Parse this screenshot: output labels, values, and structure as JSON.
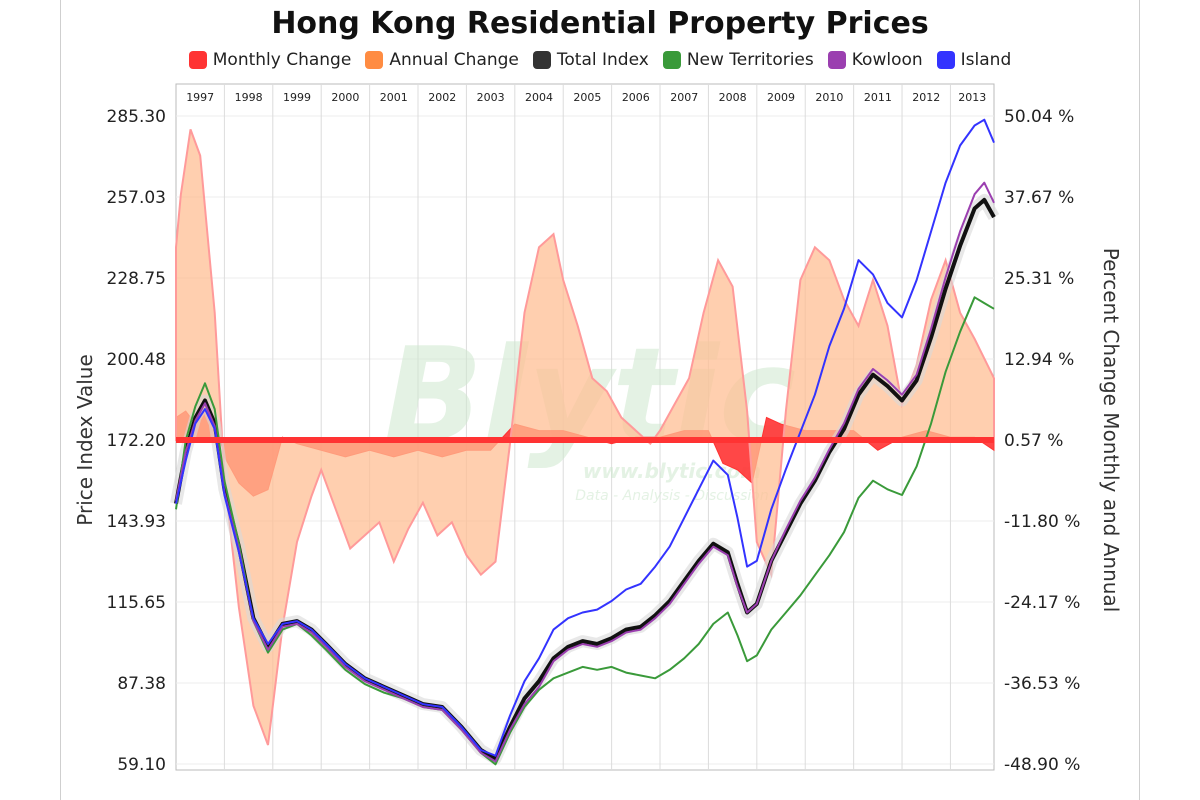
{
  "watermark": {
    "brand": "Blytic",
    "url": "www.blytic.com",
    "tagline": "Data - Analysis - Discussion"
  },
  "chart_data": {
    "type": "line",
    "title": "Hong Kong Residential Property Prices",
    "ylabel": "Price Index Value",
    "y2label": "Percent Change Monthly and Annual",
    "legend_position": "top",
    "grid": true,
    "ylim": [
      59.1,
      285.3
    ],
    "y2lim": [
      -48.9,
      50.04
    ],
    "yticks": [
      "59.10",
      "87.38",
      "115.65",
      "143.93",
      "172.20",
      "200.48",
      "228.75",
      "257.03",
      "285.30"
    ],
    "y2ticks": [
      "-48.90 %",
      "-36.53 %",
      "-24.17 %",
      "-11.80 %",
      "0.57 %",
      "12.94 %",
      "25.31 %",
      "37.67 %",
      "50.04 %"
    ],
    "x_years": [
      "1997",
      "1998",
      "1999",
      "2000",
      "2001",
      "2002",
      "2003",
      "2004",
      "2005",
      "2006",
      "2007",
      "2008",
      "2009",
      "2010",
      "2011",
      "2012",
      "2013"
    ],
    "xlim": [
      1997.0,
      2013.9
    ],
    "series": [
      {
        "name": "Monthly Change",
        "color": "#ff3333",
        "axis": "right",
        "kind": "area",
        "x": [
          1997.0,
          1997.2,
          1997.4,
          1997.6,
          1997.8,
          1998.0,
          1998.3,
          1998.6,
          1998.9,
          1999.2,
          1999.5,
          2000.0,
          2000.5,
          2001.0,
          2001.5,
          2002.0,
          2002.5,
          2003.0,
          2003.5,
          2004.0,
          2004.5,
          2005.0,
          2005.5,
          2006.0,
          2006.5,
          2007.0,
          2007.5,
          2008.0,
          2008.3,
          2008.6,
          2008.9,
          2009.2,
          2009.5,
          2010.0,
          2010.5,
          2011.0,
          2011.5,
          2012.0,
          2012.5,
          2013.0,
          2013.5,
          2013.9
        ],
        "values": [
          4,
          5,
          3,
          6,
          4,
          -2,
          -6,
          -8,
          -7,
          1,
          0,
          -1,
          -2,
          -1,
          -2,
          -1,
          -2,
          -1,
          -1,
          3,
          2,
          2,
          1,
          0,
          1,
          1,
          2,
          2,
          -3,
          -4,
          -6,
          4,
          3,
          2,
          2,
          2,
          -1,
          1,
          2,
          1,
          1,
          -1
        ]
      },
      {
        "name": "Annual Change",
        "color": "#ff8c42",
        "axis": "right",
        "kind": "area",
        "x": [
          1997.0,
          1997.1,
          1997.3,
          1997.5,
          1997.8,
          1998.0,
          1998.3,
          1998.6,
          1998.9,
          1999.2,
          1999.5,
          1999.8,
          2000.0,
          2000.3,
          2000.6,
          2000.9,
          2001.2,
          2001.5,
          2001.8,
          2002.1,
          2002.4,
          2002.7,
          2003.0,
          2003.3,
          2003.6,
          2003.9,
          2004.2,
          2004.5,
          2004.8,
          2005.0,
          2005.3,
          2005.6,
          2005.9,
          2006.2,
          2006.5,
          2006.8,
          2007.0,
          2007.3,
          2007.6,
          2007.9,
          2008.2,
          2008.5,
          2008.8,
          2009.0,
          2009.3,
          2009.6,
          2009.9,
          2010.2,
          2010.5,
          2010.8,
          2011.1,
          2011.4,
          2011.7,
          2012.0,
          2012.3,
          2012.6,
          2012.9,
          2013.2,
          2013.5,
          2013.9
        ],
        "values": [
          30,
          38,
          48,
          44,
          20,
          -5,
          -25,
          -40,
          -46,
          -28,
          -15,
          -8,
          -4,
          -10,
          -16,
          -14,
          -12,
          -18,
          -13,
          -9,
          -14,
          -12,
          -17,
          -20,
          -18,
          0,
          20,
          30,
          32,
          25,
          18,
          10,
          8,
          4,
          2,
          0,
          2,
          6,
          10,
          20,
          28,
          24,
          5,
          -15,
          -20,
          5,
          25,
          30,
          28,
          22,
          18,
          25,
          18,
          6,
          12,
          22,
          28,
          20,
          16,
          10
        ]
      },
      {
        "name": "Total Index",
        "color": "#333333",
        "axis": "left",
        "kind": "line",
        "x": [
          1997.0,
          1997.2,
          1997.4,
          1997.6,
          1997.8,
          1998.0,
          1998.3,
          1998.6,
          1998.9,
          1999.2,
          1999.5,
          1999.8,
          2000.1,
          2000.5,
          2000.9,
          2001.3,
          2001.7,
          2002.1,
          2002.5,
          2002.9,
          2003.3,
          2003.6,
          2003.9,
          2004.2,
          2004.5,
          2004.8,
          2005.1,
          2005.4,
          2005.7,
          2006.0,
          2006.3,
          2006.6,
          2006.9,
          2007.2,
          2007.5,
          2007.8,
          2008.1,
          2008.4,
          2008.6,
          2008.8,
          2009.0,
          2009.3,
          2009.6,
          2009.9,
          2010.2,
          2010.5,
          2010.8,
          2011.1,
          2011.4,
          2011.7,
          2012.0,
          2012.3,
          2012.6,
          2012.9,
          2013.2,
          2013.5,
          2013.7,
          2013.9
        ],
        "values": [
          150,
          168,
          180,
          186,
          178,
          155,
          135,
          110,
          100,
          108,
          109,
          106,
          101,
          94,
          89,
          86,
          83,
          80,
          79,
          72,
          64,
          61,
          72,
          82,
          88,
          96,
          100,
          102,
          101,
          103,
          106,
          107,
          111,
          116,
          123,
          130,
          136,
          133,
          122,
          112,
          115,
          130,
          140,
          150,
          158,
          168,
          176,
          188,
          195,
          191,
          186,
          193,
          208,
          225,
          240,
          253,
          256,
          250
        ]
      },
      {
        "name": "New Territories",
        "color": "#3a9a3a",
        "axis": "left",
        "kind": "line",
        "x": [
          1997.0,
          1997.2,
          1997.4,
          1997.6,
          1997.8,
          1998.0,
          1998.3,
          1998.6,
          1998.9,
          1999.2,
          1999.5,
          1999.8,
          2000.1,
          2000.5,
          2000.9,
          2001.3,
          2001.7,
          2002.1,
          2002.5,
          2002.9,
          2003.3,
          2003.6,
          2003.9,
          2004.2,
          2004.5,
          2004.8,
          2005.1,
          2005.4,
          2005.7,
          2006.0,
          2006.3,
          2006.6,
          2006.9,
          2007.2,
          2007.5,
          2007.8,
          2008.1,
          2008.4,
          2008.6,
          2008.8,
          2009.0,
          2009.3,
          2009.6,
          2009.9,
          2010.2,
          2010.5,
          2010.8,
          2011.1,
          2011.4,
          2011.7,
          2012.0,
          2012.3,
          2012.6,
          2012.9,
          2013.2,
          2013.5,
          2013.7,
          2013.9
        ],
        "values": [
          148,
          172,
          184,
          192,
          183,
          158,
          136,
          109,
          98,
          106,
          108,
          104,
          99,
          92,
          87,
          84,
          82,
          79,
          78,
          71,
          63,
          59,
          70,
          79,
          85,
          89,
          91,
          93,
          92,
          93,
          91,
          90,
          89,
          92,
          96,
          101,
          108,
          112,
          104,
          95,
          97,
          106,
          112,
          118,
          125,
          132,
          140,
          152,
          158,
          155,
          153,
          163,
          178,
          196,
          210,
          222,
          220,
          218
        ]
      },
      {
        "name": "Kowloon",
        "color": "#9b3fb0",
        "axis": "left",
        "kind": "line",
        "x": [
          1997.0,
          1997.2,
          1997.4,
          1997.6,
          1997.8,
          1998.0,
          1998.3,
          1998.6,
          1998.9,
          1999.2,
          1999.5,
          1999.8,
          2000.1,
          2000.5,
          2000.9,
          2001.3,
          2001.7,
          2002.1,
          2002.5,
          2002.9,
          2003.3,
          2003.6,
          2003.9,
          2004.2,
          2004.5,
          2004.8,
          2005.1,
          2005.4,
          2005.7,
          2006.0,
          2006.3,
          2006.6,
          2006.9,
          2007.2,
          2007.5,
          2007.8,
          2008.1,
          2008.4,
          2008.6,
          2008.8,
          2009.0,
          2009.3,
          2009.6,
          2009.9,
          2010.2,
          2010.5,
          2010.8,
          2011.1,
          2011.4,
          2011.7,
          2012.0,
          2012.3,
          2012.6,
          2012.9,
          2013.2,
          2013.5,
          2013.7,
          2013.9
        ],
        "values": [
          151,
          168,
          179,
          185,
          177,
          154,
          134,
          109,
          99,
          107,
          108,
          105,
          100,
          93,
          88,
          85,
          82,
          79,
          78,
          71,
          63,
          60,
          71,
          80,
          86,
          95,
          99,
          101,
          100,
          102,
          105,
          106,
          110,
          115,
          122,
          129,
          135,
          132,
          121,
          112,
          115,
          130,
          141,
          151,
          159,
          169,
          178,
          190,
          197,
          193,
          188,
          195,
          211,
          229,
          245,
          258,
          262,
          255
        ]
      },
      {
        "name": "Island",
        "color": "#3333ff",
        "axis": "left",
        "kind": "line",
        "x": [
          1997.0,
          1997.2,
          1997.4,
          1997.6,
          1997.8,
          1998.0,
          1998.3,
          1998.6,
          1998.9,
          1999.2,
          1999.5,
          1999.8,
          2000.1,
          2000.5,
          2000.9,
          2001.3,
          2001.7,
          2002.1,
          2002.5,
          2002.9,
          2003.3,
          2003.6,
          2003.9,
          2004.2,
          2004.5,
          2004.8,
          2005.1,
          2005.4,
          2005.7,
          2006.0,
          2006.3,
          2006.6,
          2006.9,
          2007.2,
          2007.5,
          2007.8,
          2008.1,
          2008.4,
          2008.6,
          2008.8,
          2009.0,
          2009.3,
          2009.6,
          2009.9,
          2010.2,
          2010.5,
          2010.8,
          2011.1,
          2011.4,
          2011.7,
          2012.0,
          2012.3,
          2012.6,
          2012.9,
          2013.2,
          2013.5,
          2013.7,
          2013.9
        ],
        "values": [
          150,
          165,
          178,
          183,
          176,
          153,
          133,
          110,
          101,
          108,
          109,
          106,
          101,
          94,
          89,
          86,
          83,
          80,
          79,
          72,
          64,
          62,
          76,
          88,
          96,
          106,
          110,
          112,
          113,
          116,
          120,
          122,
          128,
          135,
          145,
          155,
          165,
          160,
          145,
          128,
          130,
          148,
          162,
          175,
          188,
          205,
          218,
          235,
          230,
          220,
          215,
          228,
          245,
          262,
          275,
          282,
          284,
          276
        ]
      }
    ]
  }
}
